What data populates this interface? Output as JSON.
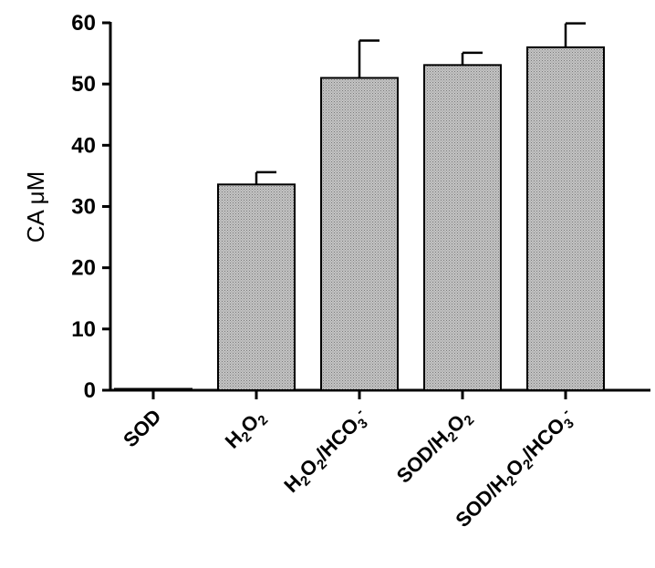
{
  "chart_data": {
    "type": "bar",
    "title": "",
    "xlabel": "",
    "ylabel": "CA μM",
    "ylim": [
      0,
      60
    ],
    "yticks": [
      0,
      10,
      20,
      30,
      40,
      50,
      60
    ],
    "categories": [
      "SOD",
      "H2O2",
      "H2O2/HCO3-",
      "SOD/H2O2",
      "SOD/H2O2/HCO3-"
    ],
    "category_labels": [
      [
        {
          "t": "SOD"
        }
      ],
      [
        {
          "t": "H"
        },
        {
          "t": "2",
          "s": "sub"
        },
        {
          "t": "O"
        },
        {
          "t": "2",
          "s": "sub"
        }
      ],
      [
        {
          "t": "H"
        },
        {
          "t": "2",
          "s": "sub"
        },
        {
          "t": "O"
        },
        {
          "t": "2",
          "s": "sub"
        },
        {
          "t": "/HCO"
        },
        {
          "t": "3",
          "s": "sub"
        },
        {
          "t": "-",
          "s": "sup"
        }
      ],
      [
        {
          "t": "SOD/H"
        },
        {
          "t": "2",
          "s": "sub"
        },
        {
          "t": "O"
        },
        {
          "t": "2",
          "s": "sub"
        }
      ],
      [
        {
          "t": "SOD/H"
        },
        {
          "t": "2",
          "s": "sub"
        },
        {
          "t": "O"
        },
        {
          "t": "2",
          "s": "sub"
        },
        {
          "t": "/HCO"
        },
        {
          "t": "3",
          "s": "sub"
        },
        {
          "t": "-",
          "s": "sup"
        }
      ]
    ],
    "values": [
      0.2,
      33.6,
      51.0,
      53.1,
      56.0
    ],
    "errors": [
      0.0,
      2.0,
      6.1,
      2.0,
      3.9
    ],
    "bar_fill": "#b9b9b9",
    "bar_stroke": "#000000",
    "grid": false,
    "legend": "none"
  }
}
